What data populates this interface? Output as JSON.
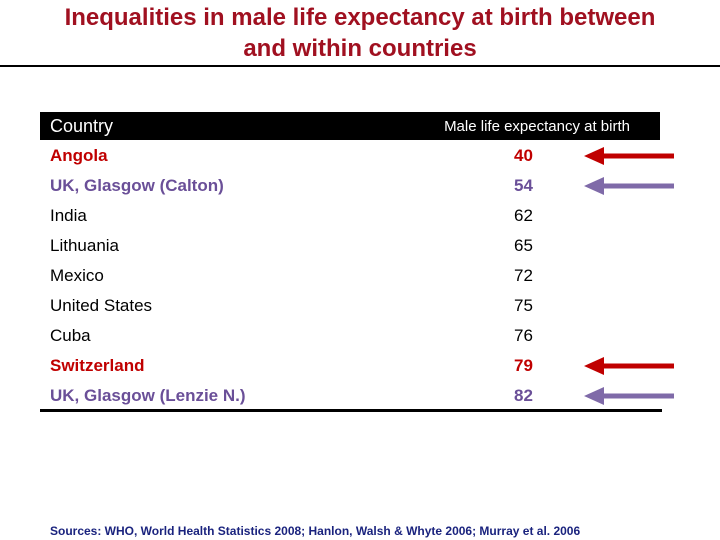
{
  "title_line1": "Inequalities in male life expectancy at birth between",
  "title_line2": "and within countries",
  "table": {
    "col_country": "Country",
    "col_value": "Male life expectancy at birth",
    "rows": [
      {
        "country": "Angola",
        "value": "40"
      },
      {
        "country": "UK, Glasgow (Calton)",
        "value": "54"
      },
      {
        "country": "India",
        "value": "62"
      },
      {
        "country": "Lithuania",
        "value": "65"
      },
      {
        "country": "Mexico",
        "value": "72"
      },
      {
        "country": "United States",
        "value": "75"
      },
      {
        "country": "Cuba",
        "value": "76"
      },
      {
        "country": "Switzerland",
        "value": "79"
      },
      {
        "country": "UK, Glasgow (Lenzie N.)",
        "value": "82"
      }
    ]
  },
  "source": "Sources: WHO, World Health Statistics 2008; Hanlon, Walsh & Whyte 2006; Murray et al. 2006",
  "colors": {
    "title": "#a01020",
    "country_highlight": "#c00000",
    "glasgow_highlight": "#6a4f98",
    "arrow_red": "#c00000",
    "arrow_purple": "#7f6aa8",
    "header_bg": "#000000",
    "source_text": "#1a237e",
    "rule": "#000000"
  }
}
